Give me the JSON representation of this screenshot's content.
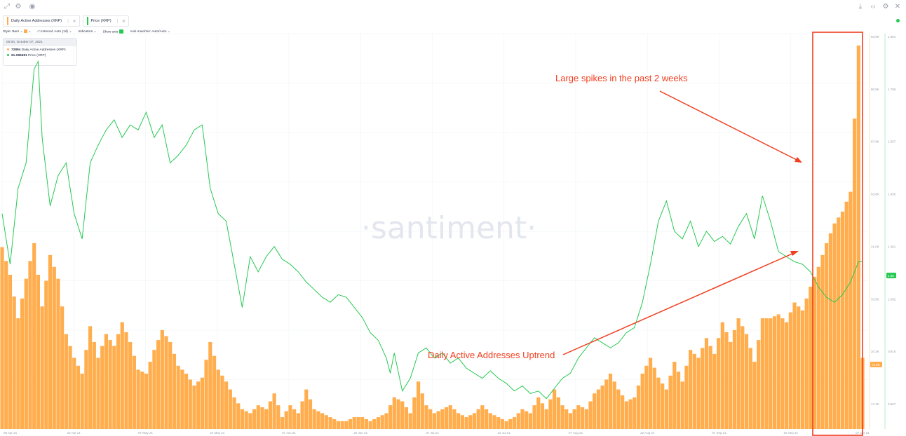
{
  "toolbar": {
    "left_icons": [
      "expand-icon",
      "settings-icon",
      "eye-icon"
    ],
    "right_icons": [
      "download-icon",
      "code-icon",
      "gear-icon",
      "close-icon"
    ]
  },
  "tabs": [
    {
      "label": "Daily Active Addresses (XRP)",
      "color": "#ffad4d"
    },
    {
      "label": "Price (XRP)",
      "color": "#26c953"
    }
  ],
  "controls": {
    "style": "Style: Bars",
    "interval": "Interval: Auto (1d)",
    "indicators": "Indicators",
    "show_axis": "Show axis",
    "axis_maxmin": "Axis max/min: Auto/Auto"
  },
  "tooltip": {
    "date": "00:00, October 07, 2021",
    "row1_value": "72894",
    "row1_label": "Daily Active Addresses (XRP)",
    "row2_value": "$1.086681",
    "row2_label": "Price (XRP)"
  },
  "watermark": "·santiment·",
  "annotations": {
    "spikes": "Large spikes in the past 2 weeks",
    "uptrend": "Daily Active Addresses Uptrend"
  },
  "colors": {
    "bars": "#ffad4d",
    "price": "#26c953",
    "annotation": "#f03e1f",
    "grid": "#e9ebef"
  },
  "chart_data": {
    "type": "bar",
    "x_tick_labels": [
      "08 Apr 21",
      "22 Apr 21",
      "07 May 21",
      "22 May 21",
      "07 Jun 21",
      "22 Jun 21",
      "07 Jul 21",
      "22 Jul 21",
      "07 Aug 21",
      "22 Aug 21",
      "07 Sep 21",
      "22 Sep 21",
      "07 Oct 21"
    ],
    "xrange": [
      "08 Apr 21",
      "07 Oct 21"
    ],
    "y_daa_ticks": [
      "93.9K",
      "80.5K",
      "67.9K",
      "53.6K",
      "41.0K",
      "33.5K",
      "20.2K",
      "17.1K"
    ],
    "y_daa_range": [
      0,
      100000
    ],
    "y_price_ticks": [
      "1.954",
      "1.766",
      "1.597",
      "1.430",
      "1.261",
      "1.092",
      "0.918",
      "0.667"
    ],
    "y_price_range": [
      0.4,
      1.96
    ],
    "current_labels": {
      "daa": "72.9K",
      "price": "1.06"
    },
    "grid": true,
    "series": [
      {
        "name": "Daily Active Addresses (XRP)",
        "kind": "bar",
        "anchors": [
          [
            0,
            46
          ],
          [
            2,
            39
          ],
          [
            4,
            28
          ],
          [
            6,
            38
          ],
          [
            8,
            47
          ],
          [
            10,
            31
          ],
          [
            12,
            44
          ],
          [
            14,
            38
          ],
          [
            16,
            24
          ],
          [
            18,
            18
          ],
          [
            20,
            14
          ],
          [
            22,
            26
          ],
          [
            24,
            18
          ],
          [
            26,
            24
          ],
          [
            28,
            21
          ],
          [
            30,
            27
          ],
          [
            32,
            22
          ],
          [
            34,
            15
          ],
          [
            36,
            14
          ],
          [
            38,
            20
          ],
          [
            40,
            25
          ],
          [
            42,
            22
          ],
          [
            44,
            16
          ],
          [
            46,
            14
          ],
          [
            48,
            11
          ],
          [
            50,
            13
          ],
          [
            52,
            22
          ],
          [
            54,
            15
          ],
          [
            56,
            12
          ],
          [
            58,
            8
          ],
          [
            60,
            5
          ],
          [
            62,
            4
          ],
          [
            64,
            6
          ],
          [
            66,
            5
          ],
          [
            68,
            9
          ],
          [
            70,
            3
          ],
          [
            72,
            6
          ],
          [
            74,
            4
          ],
          [
            76,
            10
          ],
          [
            78,
            5
          ],
          [
            80,
            4
          ],
          [
            82,
            3
          ],
          [
            84,
            2
          ],
          [
            86,
            2
          ],
          [
            88,
            3
          ],
          [
            90,
            3
          ],
          [
            92,
            2
          ],
          [
            94,
            3
          ],
          [
            96,
            4
          ],
          [
            98,
            8
          ],
          [
            100,
            7
          ],
          [
            102,
            4
          ],
          [
            104,
            12
          ],
          [
            106,
            6
          ],
          [
            108,
            4
          ],
          [
            110,
            5
          ],
          [
            112,
            6
          ],
          [
            114,
            4
          ],
          [
            116,
            3
          ],
          [
            118,
            4
          ],
          [
            120,
            6
          ],
          [
            122,
            4
          ],
          [
            124,
            3
          ],
          [
            126,
            2
          ],
          [
            128,
            3
          ],
          [
            130,
            5
          ],
          [
            132,
            4
          ],
          [
            134,
            8
          ],
          [
            136,
            5
          ],
          [
            138,
            10
          ],
          [
            140,
            6
          ],
          [
            142,
            4
          ],
          [
            144,
            6
          ],
          [
            146,
            5
          ],
          [
            148,
            9
          ],
          [
            150,
            11
          ],
          [
            152,
            14
          ],
          [
            154,
            10
          ],
          [
            156,
            7
          ],
          [
            158,
            8
          ],
          [
            160,
            14
          ],
          [
            162,
            18
          ],
          [
            164,
            13
          ],
          [
            166,
            10
          ],
          [
            168,
            17
          ],
          [
            170,
            12
          ],
          [
            172,
            20
          ],
          [
            174,
            18
          ],
          [
            176,
            23
          ],
          [
            178,
            19
          ],
          [
            180,
            27
          ],
          [
            182,
            22
          ],
          [
            184,
            28
          ],
          [
            186,
            24
          ],
          [
            188,
            17
          ],
          [
            190,
            28
          ],
          [
            192,
            28
          ],
          [
            194,
            29
          ],
          [
            196,
            27
          ],
          [
            198,
            32
          ],
          [
            200,
            30
          ],
          [
            202,
            36
          ],
          [
            204,
            41
          ],
          [
            206,
            47
          ],
          [
            208,
            52
          ],
          [
            210,
            55
          ],
          [
            212,
            60
          ],
          [
            214,
            97
          ],
          [
            215,
            18
          ]
        ]
      },
      {
        "name": "Price (XRP)",
        "kind": "line",
        "anchors": [
          [
            0,
            1.25
          ],
          [
            2,
            1.05
          ],
          [
            4,
            1.35
          ],
          [
            6,
            1.45
          ],
          [
            8,
            1.82
          ],
          [
            9,
            1.85
          ],
          [
            10,
            1.55
          ],
          [
            12,
            1.28
          ],
          [
            14,
            1.4
          ],
          [
            16,
            1.45
          ],
          [
            18,
            1.25
          ],
          [
            20,
            1.15
          ],
          [
            22,
            1.45
          ],
          [
            24,
            1.52
          ],
          [
            26,
            1.58
          ],
          [
            28,
            1.62
          ],
          [
            30,
            1.55
          ],
          [
            32,
            1.6
          ],
          [
            34,
            1.58
          ],
          [
            36,
            1.65
          ],
          [
            38,
            1.55
          ],
          [
            40,
            1.6
          ],
          [
            42,
            1.45
          ],
          [
            44,
            1.48
          ],
          [
            46,
            1.52
          ],
          [
            48,
            1.58
          ],
          [
            50,
            1.6
          ],
          [
            52,
            1.35
          ],
          [
            54,
            1.25
          ],
          [
            56,
            1.22
          ],
          [
            58,
            1.05
          ],
          [
            60,
            0.88
          ],
          [
            62,
            1.08
          ],
          [
            64,
            1.02
          ],
          [
            66,
            1.08
          ],
          [
            68,
            1.12
          ],
          [
            70,
            1.07
          ],
          [
            72,
            1.05
          ],
          [
            74,
            1.02
          ],
          [
            76,
            0.98
          ],
          [
            78,
            0.95
          ],
          [
            80,
            0.92
          ],
          [
            82,
            0.9
          ],
          [
            84,
            0.93
          ],
          [
            86,
            0.92
          ],
          [
            88,
            0.88
          ],
          [
            90,
            0.84
          ],
          [
            92,
            0.78
          ],
          [
            94,
            0.75
          ],
          [
            96,
            0.68
          ],
          [
            97,
            0.62
          ],
          [
            98,
            0.7
          ],
          [
            100,
            0.55
          ],
          [
            102,
            0.6
          ],
          [
            104,
            0.7
          ],
          [
            106,
            0.72
          ],
          [
            108,
            0.68
          ],
          [
            110,
            0.7
          ],
          [
            112,
            0.66
          ],
          [
            114,
            0.68
          ],
          [
            116,
            0.64
          ],
          [
            118,
            0.62
          ],
          [
            120,
            0.6
          ],
          [
            122,
            0.63
          ],
          [
            124,
            0.6
          ],
          [
            126,
            0.58
          ],
          [
            128,
            0.55
          ],
          [
            130,
            0.57
          ],
          [
            132,
            0.54
          ],
          [
            134,
            0.55
          ],
          [
            136,
            0.52
          ],
          [
            138,
            0.56
          ],
          [
            140,
            0.6
          ],
          [
            142,
            0.62
          ],
          [
            144,
            0.68
          ],
          [
            146,
            0.72
          ],
          [
            148,
            0.76
          ],
          [
            150,
            0.74
          ],
          [
            152,
            0.72
          ],
          [
            154,
            0.74
          ],
          [
            156,
            0.78
          ],
          [
            158,
            0.8
          ],
          [
            160,
            0.9
          ],
          [
            162,
            1.05
          ],
          [
            164,
            1.22
          ],
          [
            166,
            1.3
          ],
          [
            168,
            1.18
          ],
          [
            170,
            1.15
          ],
          [
            172,
            1.22
          ],
          [
            174,
            1.12
          ],
          [
            176,
            1.18
          ],
          [
            178,
            1.14
          ],
          [
            180,
            1.16
          ],
          [
            182,
            1.13
          ],
          [
            184,
            1.2
          ],
          [
            186,
            1.25
          ],
          [
            188,
            1.15
          ],
          [
            190,
            1.32
          ],
          [
            192,
            1.22
          ],
          [
            194,
            1.1
          ],
          [
            196,
            1.08
          ],
          [
            198,
            1.06
          ],
          [
            200,
            1.05
          ],
          [
            202,
            1.02
          ],
          [
            204,
            0.96
          ],
          [
            206,
            0.92
          ],
          [
            208,
            0.9
          ],
          [
            210,
            0.93
          ],
          [
            212,
            0.98
          ],
          [
            214,
            1.06
          ]
        ]
      }
    ]
  }
}
